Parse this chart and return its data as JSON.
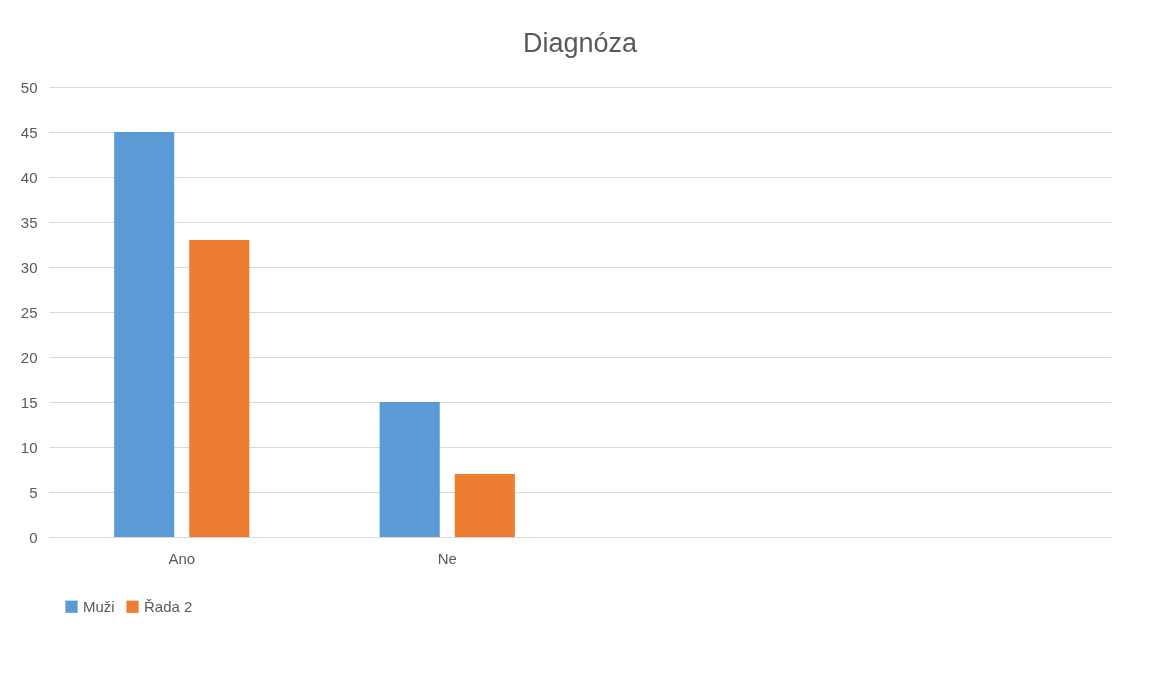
{
  "chart_data": {
    "type": "bar",
    "title": "Diagnóza",
    "categories": [
      "Ano",
      "Ne",
      null,
      null
    ],
    "series": [
      {
        "name": "Muži",
        "color": "#5b9bd5",
        "values": [
          45,
          15,
          null,
          null
        ]
      },
      {
        "name": "Řada 2",
        "color": "#ed7d31",
        "values": [
          33,
          7,
          null,
          null
        ]
      }
    ],
    "ylim": [
      0,
      50
    ],
    "yticks": [
      0,
      5,
      10,
      15,
      20,
      25,
      30,
      35,
      40,
      45,
      50
    ],
    "grid": "y",
    "legend": "bottom"
  }
}
